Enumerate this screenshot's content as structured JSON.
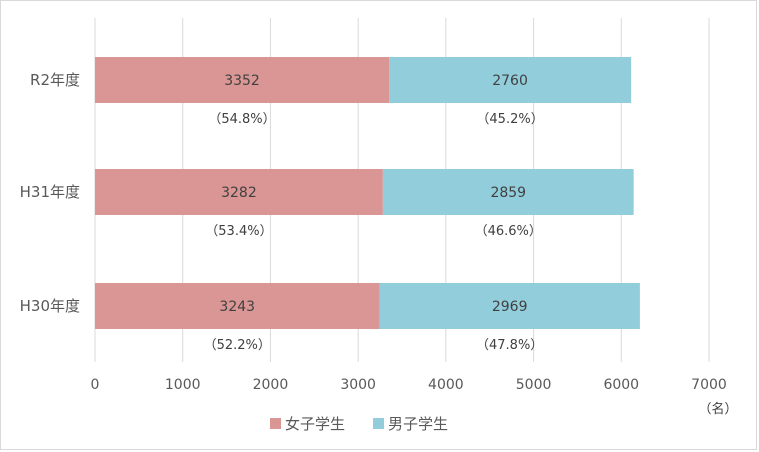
{
  "chart_data": {
    "type": "bar",
    "orientation": "horizontal",
    "stacked": true,
    "categories": [
      "R2年度",
      "H31年度",
      "H30年度"
    ],
    "series": [
      {
        "name": "女子学生",
        "color": "#DA9694",
        "values": [
          3352,
          3282,
          3243
        ],
        "value_labels": [
          "3352",
          "3282",
          "3243"
        ],
        "percent_labels": [
          "（54.8%）",
          "（53.4%）",
          "（52.2%）"
        ]
      },
      {
        "name": "男子学生",
        "color": "#92CDDC",
        "values": [
          2760,
          2859,
          2969
        ],
        "value_labels": [
          "2760",
          "2859",
          "2969"
        ],
        "percent_labels": [
          "（45.2%）",
          "（46.6%）",
          "（47.8%）"
        ]
      }
    ],
    "xlim": [
      0,
      7000
    ],
    "xticks": [
      "0",
      "1000",
      "2000",
      "3000",
      "4000",
      "5000",
      "6000",
      "7000"
    ],
    "x_unit": "（名）",
    "grid": true,
    "legend_position": "bottom",
    "grid_color": "#d9d9d9"
  }
}
